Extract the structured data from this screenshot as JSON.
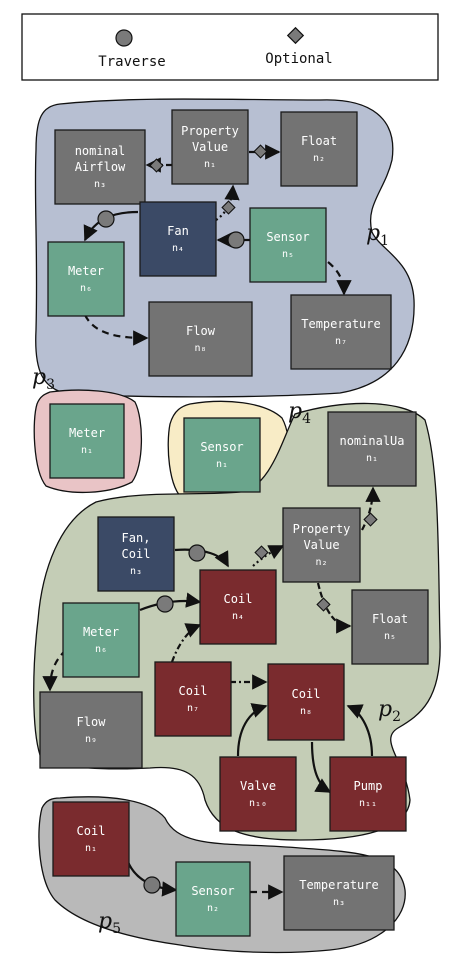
{
  "legend": {
    "traverse_label": "Traverse",
    "optional_label": "Optional"
  },
  "colors": {
    "gray_node": "#737373",
    "blue_node": "#3b4a66",
    "green_node": "#6aa58c",
    "red_node": "#7a2b2e",
    "p1_region": "#b7bfd2",
    "p2_region": "#c4cdb6",
    "p3_region": "#e9c4c6",
    "p4_region": "#f8ecc6",
    "p5_region": "#b9b9b9"
  },
  "groups": {
    "p1": {
      "letter": "p",
      "sub": "1"
    },
    "p2": {
      "letter": "p",
      "sub": "2"
    },
    "p3": {
      "letter": "p",
      "sub": "3"
    },
    "p4": {
      "letter": "p",
      "sub": "4"
    },
    "p5": {
      "letter": "p",
      "sub": "5"
    }
  },
  "nodes": {
    "p1_n1": {
      "l1": "Property",
      "l2": "Value",
      "sub": "n₁"
    },
    "p1_n2": {
      "l1": "Float",
      "sub": "n₂"
    },
    "p1_n3": {
      "l1": "nominal",
      "l2": "Airflow",
      "sub": "n₃"
    },
    "p1_n4": {
      "l1": "Fan",
      "sub": "n₄"
    },
    "p1_n5": {
      "l1": "Sensor",
      "sub": "n₅"
    },
    "p1_n6": {
      "l1": "Meter",
      "sub": "n₆"
    },
    "p1_n7": {
      "l1": "Temperature",
      "sub": "n₇"
    },
    "p1_n8": {
      "l1": "Flow",
      "sub": "n₈"
    },
    "p3_n1": {
      "l1": "Meter",
      "sub": "n₁"
    },
    "p4_n1": {
      "l1": "Sensor",
      "sub": "n₁"
    },
    "p2_n1": {
      "l1": "nominalUa",
      "sub": "n₁"
    },
    "p2_n2": {
      "l1": "Property",
      "l2": "Value",
      "sub": "n₂"
    },
    "p2_n3": {
      "l1": "Fan,",
      "l2": "Coil",
      "sub": "n₃"
    },
    "p2_n4": {
      "l1": "Coil",
      "sub": "n₄"
    },
    "p2_n5": {
      "l1": "Float",
      "sub": "n₅"
    },
    "p2_n6": {
      "l1": "Meter",
      "sub": "n₆"
    },
    "p2_n7": {
      "l1": "Coil",
      "sub": "n₇"
    },
    "p2_n8": {
      "l1": "Coil",
      "sub": "n₈"
    },
    "p2_n9": {
      "l1": "Flow",
      "sub": "n₉"
    },
    "p2_n10": {
      "l1": "Valve",
      "sub": "n₁₀"
    },
    "p2_n11": {
      "l1": "Pump",
      "sub": "n₁₁"
    },
    "p5_n1": {
      "l1": "Coil",
      "sub": "n₁"
    },
    "p5_n2": {
      "l1": "Sensor",
      "sub": "n₂"
    },
    "p5_n3": {
      "l1": "Temperature",
      "sub": "n₃"
    }
  }
}
